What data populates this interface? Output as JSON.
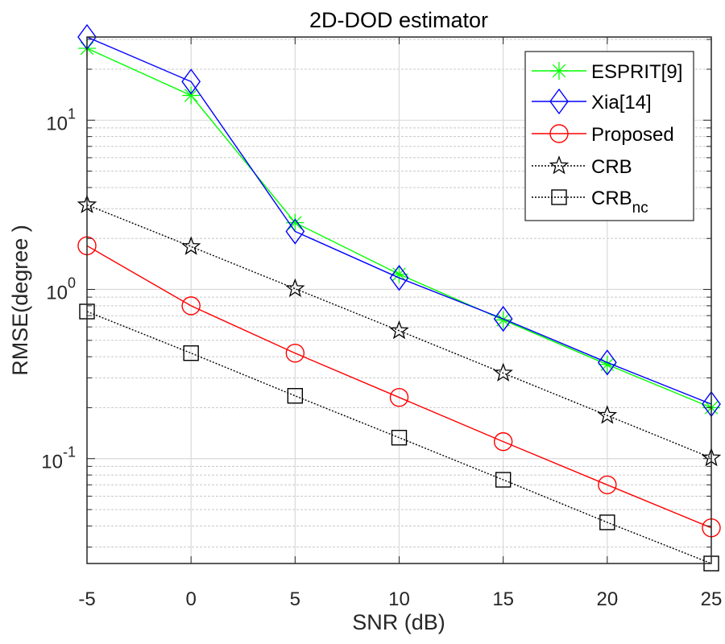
{
  "chart_data": {
    "type": "line",
    "title": "2D-DOD estimator",
    "xlabel": "SNR (dB)",
    "ylabel": "RMSE(degree )",
    "xscale": "linear",
    "yscale": "log",
    "xlim": [
      -5,
      25
    ],
    "ylim": [
      0.024,
      31
    ],
    "grid": true,
    "minor_grid": true,
    "legend_position": "top-right",
    "x": [
      -5,
      0,
      5,
      10,
      15,
      20,
      25
    ],
    "xticks": [
      -5,
      0,
      5,
      10,
      15,
      20,
      25
    ],
    "xtick_labels": [
      "-5",
      "0",
      "5",
      "10",
      "15",
      "20",
      "25"
    ],
    "yticks": [
      0.1,
      1,
      10
    ],
    "ytick_labels": [
      {
        "base": "10",
        "exp": "-1"
      },
      {
        "base": "10",
        "exp": "0"
      },
      {
        "base": "10",
        "exp": "1"
      }
    ],
    "series": [
      {
        "name": "ESPRIT[9]",
        "label": "ESPRIT[9]",
        "color": "#00ff00",
        "marker": "asterisk",
        "linestyle": "solid",
        "values": [
          26.6,
          14.0,
          2.48,
          1.23,
          0.66,
          0.36,
          0.2
        ]
      },
      {
        "name": "Xia[14]",
        "label": "Xia[14]",
        "color": "#0000ff",
        "marker": "diamond",
        "linestyle": "solid",
        "values": [
          31.0,
          16.9,
          2.2,
          1.17,
          0.67,
          0.37,
          0.21
        ]
      },
      {
        "name": "Proposed",
        "label": "Proposed",
        "color": "#ff0000",
        "marker": "circle",
        "linestyle": "solid",
        "values": [
          1.81,
          0.8,
          0.42,
          0.23,
          0.126,
          0.07,
          0.039
        ]
      },
      {
        "name": "CRB",
        "label": "CRB",
        "color": "#000000",
        "marker": "star",
        "linestyle": "dotted",
        "values": [
          3.16,
          1.79,
          1.01,
          0.57,
          0.32,
          0.18,
          0.101
        ]
      },
      {
        "name": "CRBnc",
        "label": "CRB",
        "label_sub": "nc",
        "color": "#000000",
        "marker": "square",
        "linestyle": "dotted",
        "values": [
          0.74,
          0.42,
          0.235,
          0.133,
          0.075,
          0.042,
          0.024
        ]
      }
    ]
  }
}
